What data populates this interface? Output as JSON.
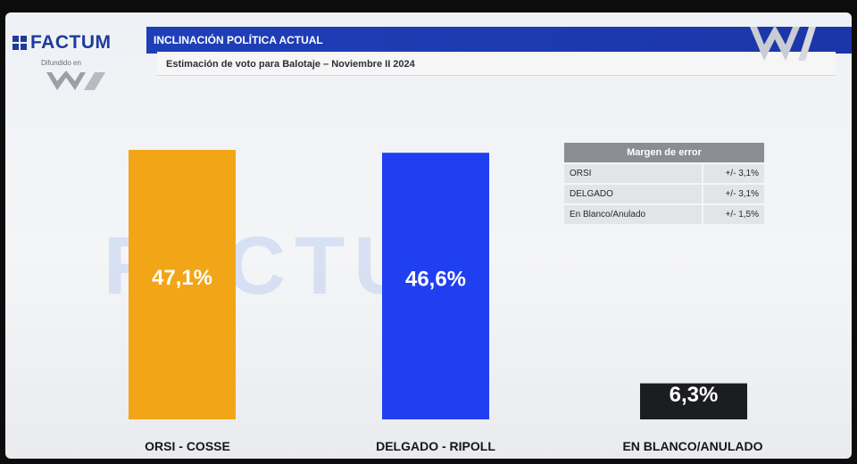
{
  "brand": {
    "name": "FACTUM",
    "sub": "Difundido en"
  },
  "header": {
    "title": "INCLINACIÓN POLÍTICA ACTUAL",
    "subtitle": "Estimación de voto para Balotaje – Noviembre II 2024"
  },
  "watermark": "FACTUM",
  "colors": {
    "orsi": "#F2A516",
    "delgado": "#1F3FF0",
    "blanco": "#1C1D21",
    "header": "#1F3FB8"
  },
  "error_table": {
    "title": "Margen de error",
    "rows": [
      {
        "label": "ORSI",
        "value": "+/- 3,1%"
      },
      {
        "label": "DELGADO",
        "value": "+/- 3,1%"
      },
      {
        "label": "En Blanco/Anulado",
        "value": "+/- 1,5%"
      }
    ]
  },
  "chart_data": {
    "type": "bar",
    "categories": [
      "ORSI - COSSE",
      "DELGADO - RIPOLL",
      "EN BLANCO/ANULADO"
    ],
    "values": [
      47.1,
      46.6,
      6.3
    ],
    "value_labels": [
      "47,1%",
      "46,6%",
      "6,3%"
    ],
    "title": "Estimación de voto para Balotaje – Noviembre II 2024",
    "xlabel": "",
    "ylabel": "",
    "ylim": [
      0,
      47.1
    ]
  }
}
